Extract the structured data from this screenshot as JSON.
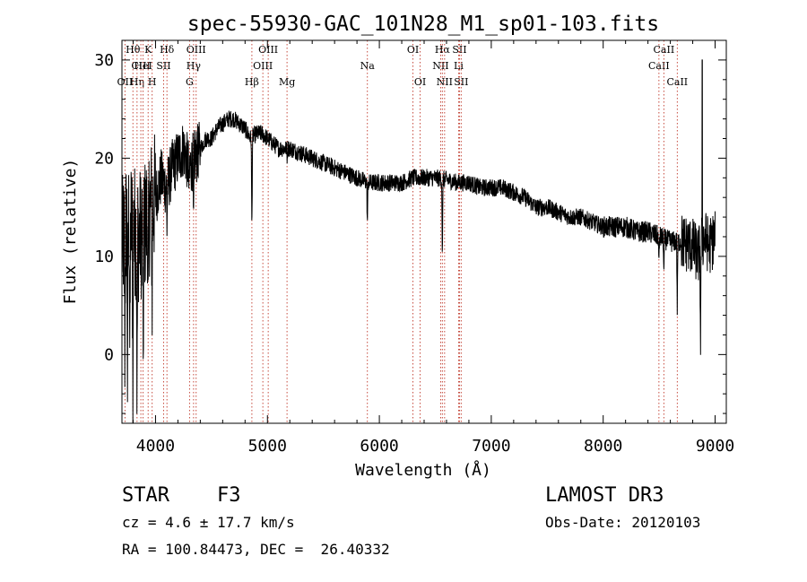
{
  "chart_data": {
    "type": "line",
    "title": "spec-55930-GAC_101N28_M1_sp01-103.fits",
    "xlabel": "Wavelength (Å)",
    "ylabel": "Flux (relative)",
    "xlim": [
      3700,
      9100
    ],
    "ylim": [
      -7,
      32
    ],
    "xticks": [
      4000,
      5000,
      6000,
      7000,
      8000,
      9000
    ],
    "xtick_labels": [
      "4000",
      "5000",
      "6000",
      "7000",
      "8000",
      "9000"
    ],
    "yticks": [
      0,
      10,
      20,
      30
    ],
    "ytick_labels": [
      "0",
      "10",
      "20",
      "30"
    ],
    "series": [
      {
        "name": "flux",
        "x": [
          3700,
          3750,
          3800,
          3850,
          3900,
          3950,
          4000,
          4050,
          4100,
          4150,
          4200,
          4250,
          4300,
          4350,
          4400,
          4450,
          4500,
          4550,
          4600,
          4650,
          4700,
          4750,
          4800,
          4850,
          4900,
          4950,
          5000,
          5050,
          5100,
          5150,
          5200,
          5300,
          5400,
          5500,
          5600,
          5700,
          5800,
          5900,
          6000,
          6100,
          6200,
          6300,
          6400,
          6500,
          6600,
          6700,
          6800,
          6900,
          7000,
          7100,
          7200,
          7300,
          7400,
          7500,
          7600,
          7700,
          7800,
          7900,
          8000,
          8100,
          8200,
          8300,
          8400,
          8500,
          8600,
          8700,
          8800,
          8850,
          8900,
          8950,
          9000
        ],
        "y": [
          11,
          14,
          13,
          12,
          13,
          15,
          16,
          18,
          17,
          19,
          20,
          21,
          19,
          20,
          21,
          22,
          22,
          23,
          23.5,
          24,
          24,
          23.5,
          23,
          22,
          22.5,
          22.5,
          22,
          21.5,
          21,
          21,
          21,
          20.5,
          20,
          19.5,
          19,
          18.5,
          18,
          17.5,
          17.5,
          17.5,
          17.5,
          18,
          18,
          18,
          17.8,
          17.5,
          17.5,
          17,
          17,
          17,
          16.5,
          16,
          15,
          15,
          14.5,
          14,
          14,
          13.5,
          13,
          13,
          13,
          12.5,
          12.5,
          12,
          11.5,
          11.5,
          11,
          10,
          12,
          11,
          12
        ]
      }
    ],
    "absorption_features": [
      {
        "x": 3726,
        "y": 1
      },
      {
        "x": 3750,
        "y": -3
      },
      {
        "x": 3771,
        "y": -2
      },
      {
        "x": 3798,
        "y": -5
      },
      {
        "x": 3835,
        "y": -5
      },
      {
        "x": 3889,
        "y": -3
      },
      {
        "x": 3934,
        "y": 3
      },
      {
        "x": 3970,
        "y": 6
      },
      {
        "x": 4102,
        "y": 13
      },
      {
        "x": 4300,
        "y": 16
      },
      {
        "x": 4340,
        "y": 12
      },
      {
        "x": 4861,
        "y": 12
      },
      {
        "x": 5175,
        "y": 20
      },
      {
        "x": 5893,
        "y": 13
      },
      {
        "x": 6563,
        "y": 9.5
      },
      {
        "x": 8498,
        "y": 9
      },
      {
        "x": 8542,
        "y": 8
      },
      {
        "x": 8662,
        "y": 4.5
      },
      {
        "x": 8870,
        "y": 1
      }
    ],
    "emission_spike": {
      "x": 8885,
      "y": 30
    },
    "lines": [
      {
        "x": 3727,
        "labels": [
          "OII"
        ],
        "rows": [
          2
        ]
      },
      {
        "x": 3798,
        "labels": [
          "Hθ"
        ],
        "rows": [
          0
        ]
      },
      {
        "x": 3835,
        "labels": [
          "Hη"
        ],
        "rows": [
          2
        ]
      },
      {
        "x": 3869,
        "labels": [
          "CIII"
        ],
        "rows": [
          1
        ]
      },
      {
        "x": 3889,
        "labels": [
          "HeI"
        ],
        "rows": [
          1
        ]
      },
      {
        "x": 3934,
        "labels": [
          "K"
        ],
        "rows": [
          0
        ]
      },
      {
        "x": 3970,
        "labels": [
          "H"
        ],
        "rows": [
          2
        ]
      },
      {
        "x": 4072,
        "labels": [
          "SII"
        ],
        "rows": [
          1
        ]
      },
      {
        "x": 4102,
        "labels": [
          "Hδ"
        ],
        "rows": [
          0
        ]
      },
      {
        "x": 4304,
        "labels": [
          "G"
        ],
        "rows": [
          2
        ]
      },
      {
        "x": 4340,
        "labels": [
          "Hγ"
        ],
        "rows": [
          1
        ]
      },
      {
        "x": 4363,
        "labels": [
          "OIII"
        ],
        "rows": [
          0
        ]
      },
      {
        "x": 4861,
        "labels": [
          "Hβ"
        ],
        "rows": [
          2
        ]
      },
      {
        "x": 4959,
        "labels": [
          "OIII"
        ],
        "rows": [
          1
        ]
      },
      {
        "x": 5007,
        "labels": [
          "OIII"
        ],
        "rows": [
          0
        ]
      },
      {
        "x": 5175,
        "labels": [
          "Mg"
        ],
        "rows": [
          2
        ]
      },
      {
        "x": 5893,
        "labels": [
          "Na"
        ],
        "rows": [
          1
        ]
      },
      {
        "x": 6300,
        "labels": [
          "OI"
        ],
        "rows": [
          0
        ]
      },
      {
        "x": 6364,
        "labels": [
          "OI"
        ],
        "rows": [
          2
        ]
      },
      {
        "x": 6548,
        "labels": [
          "NII"
        ],
        "rows": [
          1
        ]
      },
      {
        "x": 6563,
        "labels": [
          "Hα"
        ],
        "rows": [
          0
        ]
      },
      {
        "x": 6583,
        "labels": [
          "NII"
        ],
        "rows": [
          2
        ]
      },
      {
        "x": 6708,
        "labels": [
          "Li"
        ],
        "rows": [
          1
        ]
      },
      {
        "x": 6716,
        "labels": [
          "SII"
        ],
        "rows": [
          0
        ]
      },
      {
        "x": 6731,
        "labels": [
          "SII"
        ],
        "rows": [
          2
        ]
      },
      {
        "x": 8498,
        "labels": [
          "CaII"
        ],
        "rows": [
          1
        ]
      },
      {
        "x": 8542,
        "labels": [
          "CaII"
        ],
        "rows": [
          0
        ]
      },
      {
        "x": 8662,
        "labels": [
          "CaII"
        ],
        "rows": [
          2
        ]
      }
    ]
  },
  "info": {
    "class": "STAR",
    "subclass": "F3",
    "redshift": "cz = 4.6 ± 17.7 km/s",
    "coords": "RA = 100.84473, DEC =  26.40332",
    "survey": "LAMOST DR3",
    "obs_date": "Obs-Date: 20120103"
  }
}
